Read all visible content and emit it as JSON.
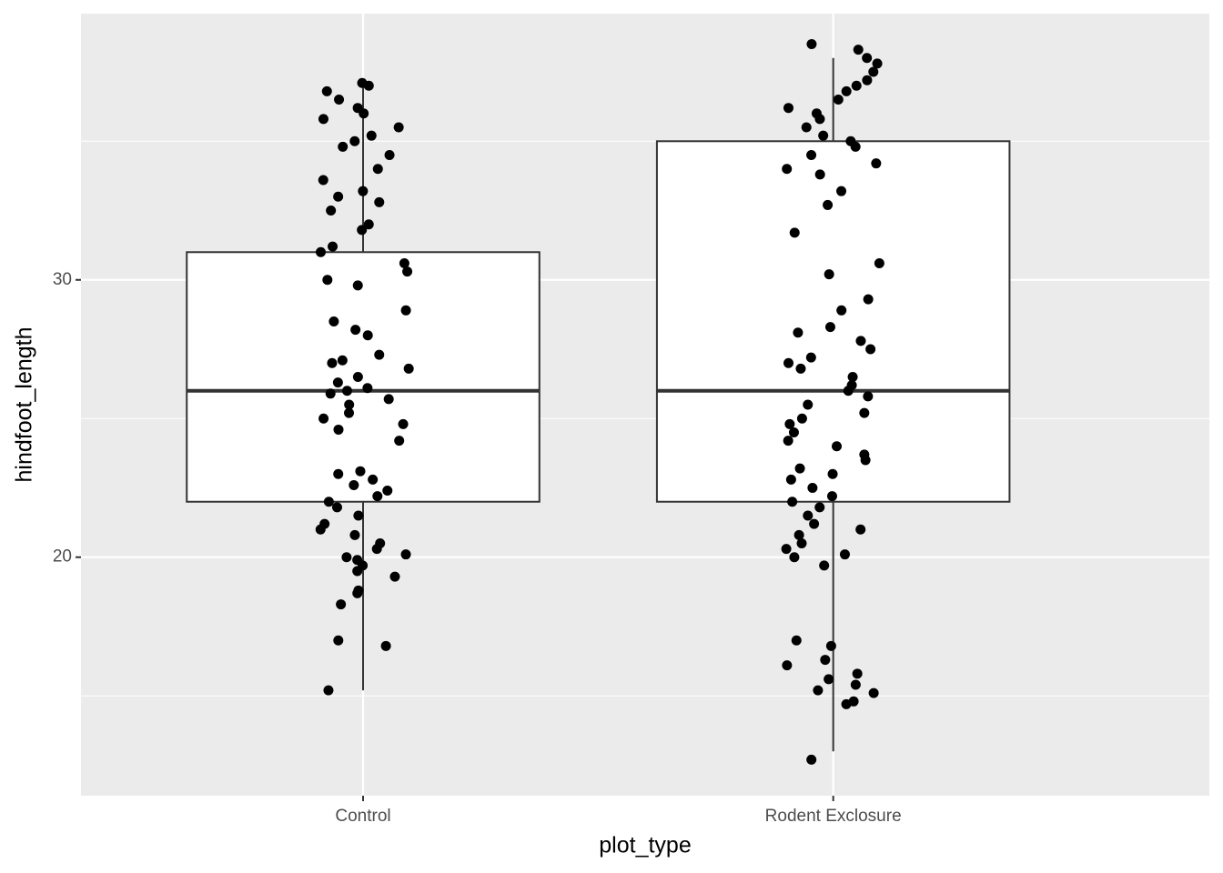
{
  "chart_data": {
    "type": "box",
    "x_label": "plot_type",
    "y_label": "hindfoot_length",
    "categories": [
      "Control",
      "Rodent Exclosure"
    ],
    "stats": [
      {
        "min": 15.2,
        "q1": 22,
        "median": 26,
        "q3": 31,
        "max": 37
      },
      {
        "min": 13,
        "q1": 22,
        "median": 26,
        "q3": 35,
        "max": 38
      }
    ],
    "points": [
      [
        37.1,
        37,
        36.8,
        36.5,
        36.2,
        36,
        35.8,
        35.5,
        35.2,
        35,
        34.8,
        34.5,
        34,
        33.6,
        33.2,
        33,
        32.8,
        32.5,
        32,
        31.8,
        31.2,
        31,
        30.6,
        30.3,
        30,
        29.8,
        28.9,
        28.5,
        28.2,
        28,
        27.3,
        27.1,
        27,
        26.8,
        26.5,
        26.3,
        26.1,
        26,
        25.9,
        25.7,
        25.5,
        25.2,
        25,
        24.8,
        24.6,
        24.2,
        23.1,
        23,
        22.8,
        22.6,
        22.4,
        22.2,
        22,
        21.8,
        21.5,
        21.2,
        21,
        20.8,
        20.5,
        20.3,
        20.1,
        20,
        19.9,
        19.7,
        19.5,
        19.3,
        18.8,
        18.7,
        18.3,
        17,
        16.8,
        15.2
      ],
      [
        38.5,
        38.3,
        38,
        37.8,
        37.5,
        37.2,
        37,
        36.8,
        36.5,
        36.2,
        36,
        35.8,
        35.5,
        35.2,
        35,
        34.8,
        34.5,
        34.2,
        34,
        33.8,
        33.2,
        32.7,
        31.7,
        30.6,
        30.2,
        29.3,
        28.9,
        28.3,
        28.1,
        27.8,
        27.5,
        27.2,
        27,
        26.8,
        26.5,
        26.2,
        26,
        25.8,
        25.5,
        25.2,
        25,
        24.8,
        24.5,
        24.2,
        24,
        23.7,
        23.5,
        23.2,
        23,
        22.8,
        22.5,
        22.2,
        22,
        21.8,
        21.5,
        21.2,
        21,
        20.8,
        20.5,
        20.3,
        20.1,
        20,
        19.7,
        17,
        16.8,
        16.3,
        16.1,
        15.8,
        15.6,
        15.4,
        15.2,
        15.1,
        14.8,
        14.7,
        12.7
      ]
    ],
    "ylim": [
      11.4,
      39.6
    ],
    "yticks": [
      20,
      30
    ],
    "yminorticks": [
      15,
      25,
      35
    ],
    "grid": true,
    "panel_color": "#ebebeb",
    "point_color": "#000000",
    "box_fill": "#ffffff",
    "box_color": "#333333"
  }
}
